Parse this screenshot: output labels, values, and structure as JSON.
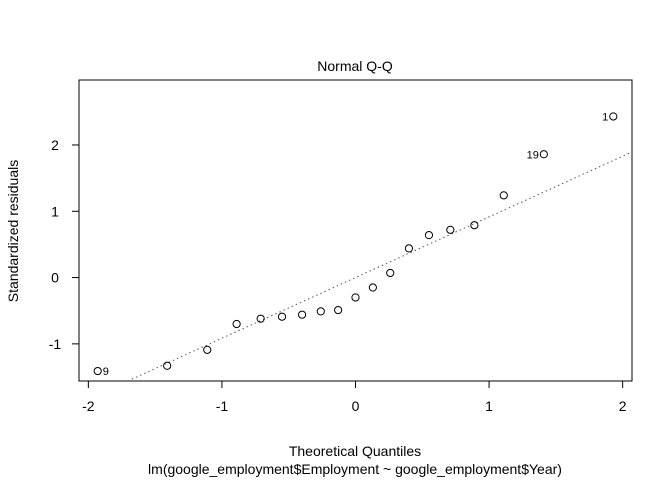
{
  "chart_data": {
    "type": "scatter",
    "title": "Normal Q-Q",
    "xlabel": "Theoretical Quantiles",
    "ylabel": "Standardized residuals",
    "subtitle": "lm(google_employment$Employment ~ google_employment$Year)",
    "xlim": [
      -2.07,
      2.07
    ],
    "ylim": [
      -1.56,
      2.98
    ],
    "x_ticks": [
      -2,
      -1,
      0,
      1,
      2
    ],
    "x_tick_labels": [
      "-2",
      "-1",
      "0",
      "1",
      "2"
    ],
    "y_ticks": [
      -1,
      0,
      1,
      2
    ],
    "y_tick_labels": [
      "-1",
      "0",
      "1",
      "2"
    ],
    "grid": false,
    "reference_line": {
      "style": "dotted",
      "slope": 0.915,
      "intercept": 0.0
    },
    "points": [
      {
        "x": -1.93,
        "y": -1.41,
        "label": "9"
      },
      {
        "x": -1.41,
        "y": -1.33
      },
      {
        "x": -1.11,
        "y": -1.09
      },
      {
        "x": -0.89,
        "y": -0.7
      },
      {
        "x": -0.71,
        "y": -0.62
      },
      {
        "x": -0.55,
        "y": -0.59
      },
      {
        "x": -0.4,
        "y": -0.56
      },
      {
        "x": -0.26,
        "y": -0.51
      },
      {
        "x": -0.13,
        "y": -0.49
      },
      {
        "x": 0.0,
        "y": -0.3
      },
      {
        "x": 0.13,
        "y": -0.15
      },
      {
        "x": 0.26,
        "y": 0.07
      },
      {
        "x": 0.4,
        "y": 0.44
      },
      {
        "x": 0.55,
        "y": 0.64
      },
      {
        "x": 0.71,
        "y": 0.72
      },
      {
        "x": 0.89,
        "y": 0.79
      },
      {
        "x": 1.11,
        "y": 1.24
      },
      {
        "x": 1.41,
        "y": 1.86,
        "label": "19"
      },
      {
        "x": 1.93,
        "y": 2.43,
        "label": "1"
      }
    ]
  }
}
